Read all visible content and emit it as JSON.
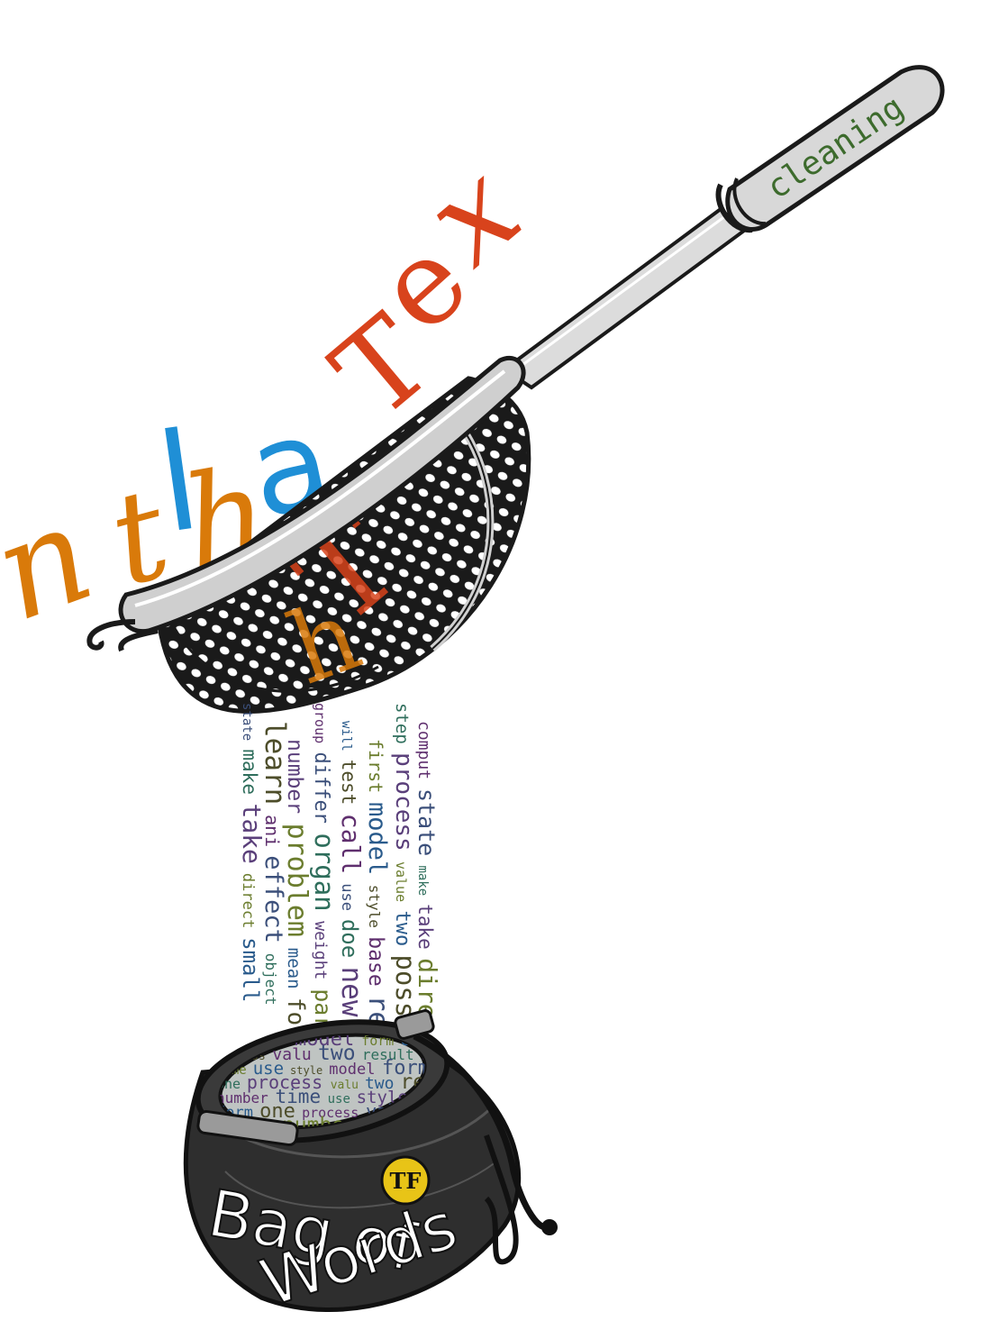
{
  "handle_label": "cleaning",
  "bag_text": {
    "line1": "Bag of",
    "line2": "Words",
    "badge": "TF"
  },
  "raw_text_letters": [
    "n",
    "t",
    "h",
    "l",
    "a",
    "T",
    "e",
    "x"
  ],
  "word_stream": [
    "state",
    "make",
    "take",
    "direct",
    "small",
    "learn",
    "ani",
    "effect",
    "object",
    "number",
    "problem",
    "mean",
    "form",
    "group",
    "differ",
    "organ",
    "weight",
    "part",
    "will",
    "test",
    "call",
    "use",
    "doe",
    "new",
    "first",
    "model",
    "style",
    "base",
    "result",
    "step",
    "process",
    "value",
    "two",
    "possibl",
    "comput"
  ],
  "bag_words": [
    "use",
    "style",
    "model",
    "form",
    "one",
    "process",
    "valu",
    "two",
    "result",
    "number",
    "time"
  ],
  "colors": {
    "raw_orange": "#d97a0a",
    "raw_blue": "#1f8fd6",
    "raw_red": "#d8431c",
    "handle_text": "#3d6b2d",
    "badge_fill": "#e8c417",
    "bag_body": "#2e2e2e",
    "strainer": "#3a3a3a"
  }
}
